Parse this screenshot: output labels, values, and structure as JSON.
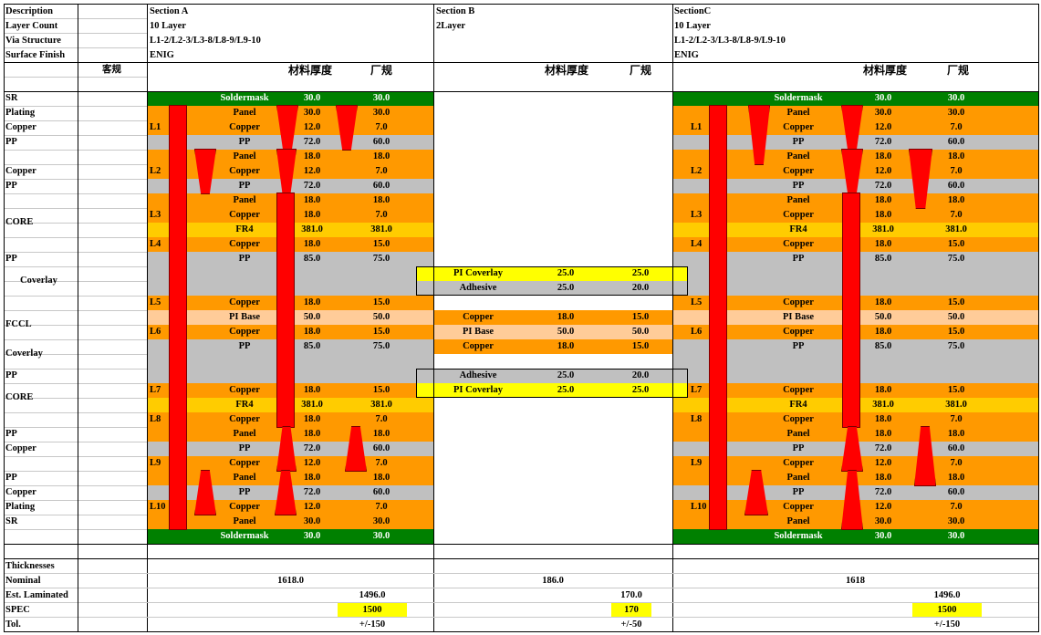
{
  "header": {
    "labels": [
      "Description",
      "Layer Count",
      "Via Structure",
      "Surface Finish"
    ],
    "sections": [
      {
        "lines": [
          "Section A",
          "10 Layer",
          "L1-2/L2-3/L3-8/L8-9/L9-10",
          "ENIG"
        ]
      },
      {
        "lines": [
          "Section B",
          "2Layer"
        ]
      },
      {
        "lines": [
          "SectionC",
          "10 Layer",
          "L1-2/L2-3/L3-8/L8-9/L9-10",
          "ENIG"
        ]
      }
    ],
    "col_customer": "客规",
    "col_material": "材料厚度",
    "col_factory": "厂规"
  },
  "colors": {
    "soldermask": "#008000",
    "copper": "#ff9900",
    "pp": "#c0c0c0",
    "fr4": "#ffcc00",
    "pi_base": "#ffcc99",
    "pi_coverlay": "#ffff00",
    "via": "#ff0000",
    "spec": "#ffff00"
  },
  "left_labels": [
    "SR",
    "Plating",
    "Copper",
    "PP",
    "",
    "Copper",
    "PP",
    "",
    "CORE",
    "",
    "",
    "PP",
    "Coverlay",
    "",
    "",
    "FCCL",
    "",
    "Coverlay",
    "",
    "PP",
    "CORE",
    "",
    "",
    "PP",
    "Copper",
    "",
    "PP",
    "Copper",
    "Plating",
    "SR"
  ],
  "section_a_rows": [
    {
      "layer": "",
      "name": "Soldermask",
      "material": "30.0",
      "factory": "30.0",
      "color": "#008000",
      "white": true
    },
    {
      "layer": "",
      "name": "Panel",
      "material": "30.0",
      "factory": "30.0",
      "color": "#ff9900"
    },
    {
      "layer": "L1",
      "name": "Copper",
      "material": "12.0",
      "factory": "7.0",
      "color": "#ff9900"
    },
    {
      "layer": "",
      "name": "PP",
      "material": "72.0",
      "factory": "60.0",
      "color": "#c0c0c0"
    },
    {
      "layer": "",
      "name": "Panel",
      "material": "18.0",
      "factory": "18.0",
      "color": "#ff9900"
    },
    {
      "layer": "L2",
      "name": "Copper",
      "material": "12.0",
      "factory": "7.0",
      "color": "#ff9900"
    },
    {
      "layer": "",
      "name": "PP",
      "material": "72.0",
      "factory": "60.0",
      "color": "#c0c0c0"
    },
    {
      "layer": "",
      "name": "Panel",
      "material": "18.0",
      "factory": "18.0",
      "color": "#ff9900"
    },
    {
      "layer": "L3",
      "name": "Copper",
      "material": "18.0",
      "factory": "7.0",
      "color": "#ff9900"
    },
    {
      "layer": "",
      "name": "FR4",
      "material": "381.0",
      "factory": "381.0",
      "color": "#ffcc00"
    },
    {
      "layer": "L4",
      "name": "Copper",
      "material": "18.0",
      "factory": "15.0",
      "color": "#ff9900"
    },
    {
      "layer": "",
      "name": "PP",
      "material": "85.0",
      "factory": "75.0",
      "color": "#c0c0c0",
      "span": 3
    },
    {
      "layer": "L5",
      "name": "Copper",
      "material": "18.0",
      "factory": "15.0",
      "color": "#ff9900"
    },
    {
      "layer": "",
      "name": "PI Base",
      "material": "50.0",
      "factory": "50.0",
      "color": "#ffcc99"
    },
    {
      "layer": "L6",
      "name": "Copper",
      "material": "18.0",
      "factory": "15.0",
      "color": "#ff9900"
    },
    {
      "layer": "",
      "name": "PP",
      "material": "85.0",
      "factory": "75.0",
      "color": "#c0c0c0",
      "span": 3
    },
    {
      "layer": "L7",
      "name": "Copper",
      "material": "18.0",
      "factory": "15.0",
      "color": "#ff9900"
    },
    {
      "layer": "",
      "name": "FR4",
      "material": "381.0",
      "factory": "381.0",
      "color": "#ffcc00"
    },
    {
      "layer": "L8",
      "name": "Copper",
      "material": "18.0",
      "factory": "7.0",
      "color": "#ff9900"
    },
    {
      "layer": "",
      "name": "Panel",
      "material": "18.0",
      "factory": "18.0",
      "color": "#ff9900"
    },
    {
      "layer": "",
      "name": "PP",
      "material": "72.0",
      "factory": "60.0",
      "color": "#c0c0c0"
    },
    {
      "layer": "L9",
      "name": "Copper",
      "material": "12.0",
      "factory": "7.0",
      "color": "#ff9900"
    },
    {
      "layer": "",
      "name": "Panel",
      "material": "18.0",
      "factory": "18.0",
      "color": "#ff9900"
    },
    {
      "layer": "",
      "name": "PP",
      "material": "72.0",
      "factory": "60.0",
      "color": "#c0c0c0"
    },
    {
      "layer": "L10",
      "name": "Copper",
      "material": "12.0",
      "factory": "7.0",
      "color": "#ff9900"
    },
    {
      "layer": "",
      "name": "Panel",
      "material": "30.0",
      "factory": "30.0",
      "color": "#ff9900"
    },
    {
      "layer": "",
      "name": "Soldermask",
      "material": "30.0",
      "factory": "30.0",
      "color": "#008000",
      "white": true
    }
  ],
  "section_b_rows": [
    {
      "name": "PI Coverlay",
      "material": "25.0",
      "factory": "25.0",
      "color": "#ffff00"
    },
    {
      "name": "Adhesive",
      "material": "25.0",
      "factory": "20.0",
      "color": "#c0c0c0"
    },
    {
      "name": "Copper",
      "material": "18.0",
      "factory": "15.0",
      "color": "#ff9900"
    },
    {
      "name": "PI Base",
      "material": "50.0",
      "factory": "50.0",
      "color": "#ffcc99"
    },
    {
      "name": "Copper",
      "material": "18.0",
      "factory": "15.0",
      "color": "#ff9900"
    },
    {
      "name": "Adhesive",
      "material": "25.0",
      "factory": "20.0",
      "color": "#c0c0c0"
    },
    {
      "name": "PI Coverlay",
      "material": "25.0",
      "factory": "25.0",
      "color": "#ffff00"
    }
  ],
  "thickness": {
    "labels": [
      "Thicknesses",
      "Nominal",
      "Est. Laminated",
      "SPEC",
      "Tol."
    ],
    "a": {
      "nominal": "1618.0",
      "laminated": "1496.0",
      "spec": "1500",
      "tol": "+/-150"
    },
    "b": {
      "nominal": "186.0",
      "laminated": "170.0",
      "spec": "170",
      "tol": "+/-50"
    },
    "c": {
      "nominal": "1618",
      "laminated": "1496.0",
      "spec": "1500",
      "tol": "+/-150"
    }
  }
}
